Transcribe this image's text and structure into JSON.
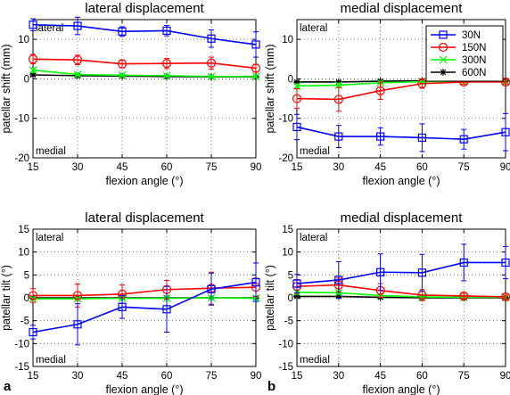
{
  "figure": {
    "panel_letters": [
      "a",
      "b"
    ]
  },
  "legend": {
    "placement": "top-right of top-right panel",
    "entries": [
      {
        "label": "30N",
        "color": "#0000ff",
        "marker": "square"
      },
      {
        "label": "150N",
        "color": "#ff0000",
        "marker": "circle"
      },
      {
        "label": "300N",
        "color": "#00ff00",
        "marker": "x"
      },
      {
        "label": "600N",
        "color": "#000000",
        "marker": "asterisk"
      }
    ]
  },
  "chart_data": [
    {
      "type": "line",
      "title": "lateral displacement",
      "xlabel": "flexion angle (°)",
      "ylabel": "patellar shift (mm)",
      "x": [
        15,
        30,
        45,
        60,
        75,
        90
      ],
      "xlim": [
        15,
        90
      ],
      "ylim": [
        -20,
        15
      ],
      "yticks": [
        -20,
        -10,
        0,
        10
      ],
      "grid": true,
      "annotations": {
        "top": "lateral",
        "bottom": "medial"
      },
      "series": [
        {
          "name": "30N",
          "color": "#0000ff",
          "marker": "square",
          "values": [
            13.7,
            13.4,
            12.0,
            12.2,
            10.2,
            8.7
          ],
          "errors": [
            1.5,
            2.2,
            1.2,
            1.3,
            2.2,
            3.2
          ]
        },
        {
          "name": "150N",
          "color": "#ff0000",
          "marker": "circle",
          "values": [
            5.0,
            4.8,
            3.8,
            3.9,
            4.0,
            2.7
          ],
          "errors": [
            1.2,
            1.2,
            1.0,
            1.3,
            1.5,
            1.0
          ]
        },
        {
          "name": "300N",
          "color": "#00ff00",
          "marker": "x",
          "values": [
            2.2,
            1.1,
            0.9,
            0.8,
            0.6,
            0.6
          ],
          "errors": [
            0.5,
            0.4,
            0.3,
            0.3,
            0.3,
            0.3
          ]
        },
        {
          "name": "600N",
          "color": "#000000",
          "marker": "asterisk",
          "values": [
            1.0,
            0.8,
            0.7,
            0.6,
            0.5,
            0.5
          ],
          "errors": [
            0.3,
            0.3,
            0.2,
            0.2,
            0.2,
            0.2
          ]
        }
      ]
    },
    {
      "type": "line",
      "title": "medial displacement",
      "xlabel": "flexion angle (°)",
      "ylabel": "patellar shift (mm)",
      "x": [
        15,
        30,
        45,
        60,
        75,
        90
      ],
      "xlim": [
        15,
        90
      ],
      "ylim": [
        -20,
        15
      ],
      "yticks": [
        -20,
        -10,
        0,
        10
      ],
      "grid": true,
      "annotations": {
        "top": "lateral",
        "bottom": "medial"
      },
      "series": [
        {
          "name": "30N",
          "color": "#0000ff",
          "marker": "square",
          "values": [
            -12.2,
            -14.6,
            -14.6,
            -14.9,
            -15.3,
            -13.5
          ],
          "errors": [
            3.2,
            2.8,
            2.2,
            3.5,
            2.5,
            4.7
          ]
        },
        {
          "name": "150N",
          "color": "#ff0000",
          "marker": "circle",
          "values": [
            -5.0,
            -5.2,
            -3.0,
            -1.2,
            -0.8,
            -0.8
          ],
          "errors": [
            2.5,
            3.0,
            2.2,
            1.2,
            0.6,
            0.5
          ]
        },
        {
          "name": "300N",
          "color": "#00ff00",
          "marker": "x",
          "values": [
            -1.8,
            -1.6,
            -1.0,
            -0.7,
            -0.6,
            -0.7
          ],
          "errors": [
            0.5,
            0.5,
            0.4,
            0.3,
            0.3,
            0.3
          ]
        },
        {
          "name": "600N",
          "color": "#000000",
          "marker": "asterisk",
          "values": [
            -0.8,
            -0.8,
            -0.6,
            -0.5,
            -0.5,
            -0.5
          ],
          "errors": [
            0.2,
            0.2,
            0.2,
            0.2,
            0.2,
            0.2
          ]
        }
      ]
    },
    {
      "type": "line",
      "title": "lateral displacement",
      "xlabel": "flexion angle (°)",
      "ylabel": "patellar tilt (°)",
      "x": [
        15,
        30,
        45,
        60,
        75,
        90
      ],
      "xlim": [
        15,
        90
      ],
      "ylim": [
        -15,
        15
      ],
      "yticks": [
        -15,
        -10,
        -5,
        0,
        5,
        10,
        15
      ],
      "grid": true,
      "annotations": {
        "top": "lateral",
        "bottom": "medial"
      },
      "series": [
        {
          "name": "30N",
          "color": "#0000ff",
          "marker": "square",
          "values": [
            -7.5,
            -5.8,
            -2.0,
            -2.5,
            1.9,
            3.4
          ],
          "errors": [
            1.5,
            4.5,
            2.5,
            5.0,
            3.5,
            4.2
          ]
        },
        {
          "name": "150N",
          "color": "#ff0000",
          "marker": "circle",
          "values": [
            0.5,
            0.5,
            0.8,
            1.8,
            2.1,
            2.3
          ],
          "errors": [
            1.5,
            2.5,
            2.0,
            2.0,
            3.5,
            2.0
          ]
        },
        {
          "name": "300N",
          "color": "#00ff00",
          "marker": "x",
          "values": [
            -0.2,
            -0.2,
            -0.1,
            -0.1,
            0.0,
            -0.1
          ],
          "errors": [
            0.3,
            0.3,
            0.3,
            0.3,
            0.3,
            0.3
          ]
        },
        {
          "name": "600N",
          "color": "#000000",
          "marker": "asterisk",
          "values": [
            0.0,
            0.0,
            0.0,
            0.0,
            0.0,
            0.0
          ],
          "errors": [
            0.2,
            0.2,
            0.2,
            0.2,
            0.2,
            0.2
          ]
        }
      ]
    },
    {
      "type": "line",
      "title": "medial displacement",
      "xlabel": "flexion angle (°)",
      "ylabel": "patellar tilt (°)",
      "x": [
        15,
        30,
        45,
        60,
        75,
        90
      ],
      "xlim": [
        15,
        90
      ],
      "ylim": [
        -15,
        15
      ],
      "yticks": [
        -15,
        -10,
        -5,
        0,
        5,
        10,
        15
      ],
      "grid": true,
      "annotations": {
        "top": "lateral",
        "bottom": "medial"
      },
      "series": [
        {
          "name": "30N",
          "color": "#0000ff",
          "marker": "square",
          "values": [
            3.1,
            3.9,
            5.6,
            5.5,
            7.7,
            7.7
          ],
          "errors": [
            2.0,
            4.0,
            4.0,
            4.0,
            4.0,
            3.5
          ]
        },
        {
          "name": "150N",
          "color": "#ff0000",
          "marker": "circle",
          "values": [
            2.5,
            2.8,
            1.6,
            0.6,
            0.4,
            0.2
          ],
          "errors": [
            1.5,
            1.5,
            1.5,
            1.2,
            0.6,
            0.4
          ]
        },
        {
          "name": "300N",
          "color": "#00ff00",
          "marker": "x",
          "values": [
            1.2,
            1.1,
            0.5,
            0.2,
            0.1,
            0.1
          ],
          "errors": [
            0.4,
            0.4,
            0.3,
            0.3,
            0.3,
            0.3
          ]
        },
        {
          "name": "600N",
          "color": "#000000",
          "marker": "asterisk",
          "values": [
            0.3,
            0.3,
            0.1,
            0.0,
            0.0,
            0.0
          ],
          "errors": [
            0.2,
            0.2,
            0.2,
            0.2,
            0.2,
            0.2
          ]
        }
      ]
    }
  ]
}
